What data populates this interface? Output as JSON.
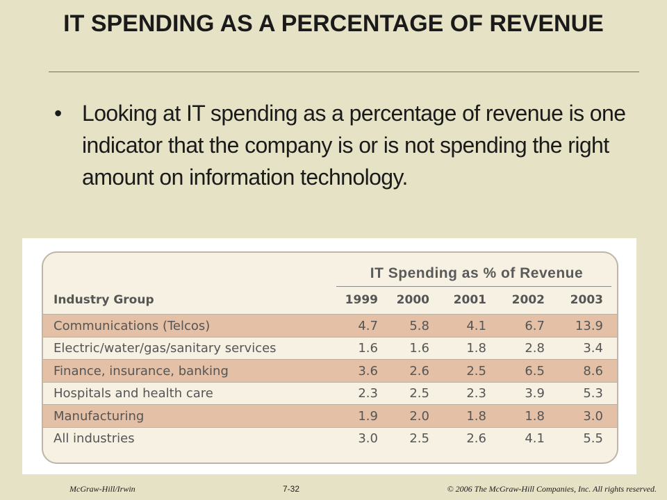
{
  "slide": {
    "title": "IT SPENDING AS A PERCENTAGE OF REVENUE",
    "bullet": "Looking at IT spending as a percentage of revenue is one indicator that the company is or is not spending the right amount on information technology."
  },
  "table": {
    "group_header": "IT Spending as % of Revenue",
    "label_header": "Industry Group",
    "years": [
      "1999",
      "2000",
      "2001",
      "2002",
      "2003"
    ],
    "rows": [
      {
        "label": "Communications (Telcos)",
        "values": [
          "4.7",
          "5.8",
          "4.1",
          "6.7",
          "13.9"
        ]
      },
      {
        "label": "Electric/water/gas/sanitary services",
        "values": [
          "1.6",
          "1.6",
          "1.8",
          "2.8",
          "3.4"
        ]
      },
      {
        "label": "Finance, insurance, banking",
        "values": [
          "3.6",
          "2.6",
          "2.5",
          "6.5",
          "8.6"
        ]
      },
      {
        "label": "Hospitals and health care",
        "values": [
          "2.3",
          "2.5",
          "2.3",
          "3.9",
          "5.3"
        ]
      },
      {
        "label": "Manufacturing",
        "values": [
          "1.9",
          "2.0",
          "1.8",
          "1.8",
          "3.0"
        ]
      },
      {
        "label": "All industries",
        "values": [
          "3.0",
          "2.5",
          "2.6",
          "4.1",
          "5.5"
        ]
      }
    ],
    "colors": {
      "shaded_row": "#e3c0a6",
      "plain_row": "#f6f1e2"
    }
  },
  "footer": {
    "left": "McGraw-Hill/Irwin",
    "center": "7-32",
    "right": "© 2006 The McGraw-Hill Companies, Inc. All rights reserved."
  }
}
